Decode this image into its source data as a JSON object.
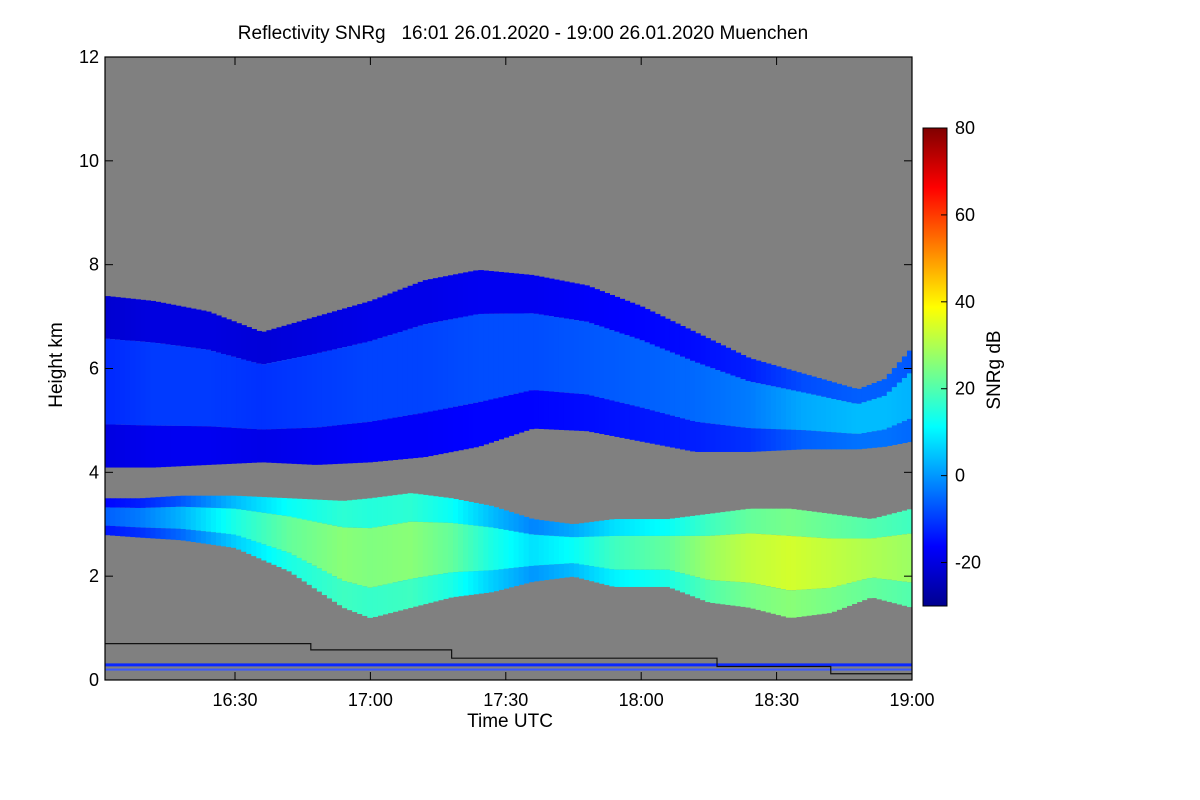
{
  "chart_data": {
    "type": "heatmap",
    "title": "Reflectivity SNRg   16:01 26.01.2020 - 19:00 26.01.2020 Muenchen",
    "xlabel": "Time UTC",
    "ylabel": "Height km",
    "x_range_hours": [
      16.02,
      19.0
    ],
    "ylim": [
      0,
      12
    ],
    "x_ticks": [
      {
        "value": 16.5,
        "label": "16:30"
      },
      {
        "value": 17.0,
        "label": "17:00"
      },
      {
        "value": 17.5,
        "label": "17:30"
      },
      {
        "value": 18.0,
        "label": "18:00"
      },
      {
        "value": 18.5,
        "label": "18:30"
      },
      {
        "value": 19.0,
        "label": "19:00"
      }
    ],
    "y_ticks": [
      {
        "value": 0,
        "label": "0"
      },
      {
        "value": 2,
        "label": "2"
      },
      {
        "value": 4,
        "label": "4"
      },
      {
        "value": 6,
        "label": "6"
      },
      {
        "value": 8,
        "label": "8"
      },
      {
        "value": 10,
        "label": "10"
      },
      {
        "value": 12,
        "label": "12"
      }
    ],
    "colorbar": {
      "label": "SNRg dB",
      "range": [
        -30,
        80
      ],
      "ticks": [
        {
          "value": -20,
          "label": "-20"
        },
        {
          "value": 0,
          "label": "0"
        },
        {
          "value": 20,
          "label": "20"
        },
        {
          "value": 40,
          "label": "40"
        },
        {
          "value": 60,
          "label": "60"
        },
        {
          "value": 80,
          "label": "80"
        }
      ],
      "colors": [
        "#00008f",
        "#0000ff",
        "#0080ff",
        "#00ffff",
        "#80ff80",
        "#ffff00",
        "#ff8000",
        "#ff0000",
        "#800000"
      ]
    },
    "no_data_color": "#808080",
    "upper_layer_boundary": {
      "x": [
        16.02,
        16.2,
        16.4,
        16.6,
        16.8,
        17.0,
        17.2,
        17.4,
        17.6,
        17.8,
        18.0,
        18.2,
        18.4,
        18.6,
        18.8,
        18.9,
        19.0
      ],
      "top_km": [
        7.4,
        7.3,
        7.1,
        6.7,
        7.0,
        7.3,
        7.7,
        7.9,
        7.8,
        7.6,
        7.2,
        6.7,
        6.2,
        5.9,
        5.6,
        5.8,
        6.4
      ],
      "bottom_km": [
        4.1,
        4.1,
        4.15,
        4.2,
        4.15,
        4.2,
        4.3,
        4.5,
        4.85,
        4.8,
        4.6,
        4.4,
        4.4,
        4.45,
        4.45,
        4.5,
        4.6
      ],
      "mean_snr_db": [
        -12,
        -10,
        -10,
        -11,
        -10,
        -9,
        -9,
        -8,
        -8,
        -7,
        -6,
        -5,
        -3,
        2,
        4,
        4,
        3
      ]
    },
    "lower_layer_boundary": {
      "x": [
        16.02,
        16.15,
        16.3,
        16.5,
        16.7,
        16.9,
        17.0,
        17.15,
        17.3,
        17.45,
        17.6,
        17.75,
        17.9,
        18.1,
        18.25,
        18.4,
        18.55,
        18.7,
        18.85,
        19.0
      ],
      "top_km": [
        3.5,
        3.5,
        3.55,
        3.55,
        3.5,
        3.45,
        3.5,
        3.6,
        3.5,
        3.35,
        3.1,
        3.0,
        3.1,
        3.1,
        3.2,
        3.3,
        3.3,
        3.2,
        3.1,
        3.3
      ],
      "bottom_km": [
        2.8,
        2.75,
        2.7,
        2.55,
        2.1,
        1.4,
        1.2,
        1.4,
        1.6,
        1.7,
        1.9,
        2.0,
        1.8,
        1.8,
        1.5,
        1.4,
        1.2,
        1.3,
        1.6,
        1.4
      ],
      "mean_snr_db": [
        -6,
        -3,
        3,
        14,
        22,
        26,
        25,
        26,
        22,
        14,
        8,
        12,
        18,
        22,
        28,
        32,
        34,
        32,
        30,
        28
      ]
    },
    "ground_line_height_km": [
      {
        "x": [
          16.02,
          16.78
        ],
        "km": 0.7
      },
      {
        "x": [
          16.78,
          17.3
        ],
        "km": 0.58
      },
      {
        "x": [
          17.3,
          18.28
        ],
        "km": 0.42
      },
      {
        "x": [
          18.28,
          18.7
        ],
        "km": 0.26
      },
      {
        "x": [
          18.7,
          19.0
        ],
        "km": 0.12
      }
    ]
  }
}
